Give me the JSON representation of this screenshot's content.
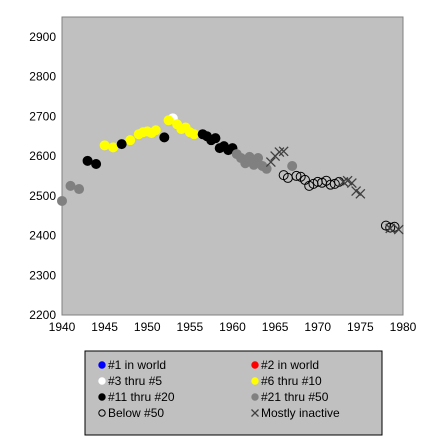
{
  "chart_data": {
    "type": "scatter",
    "title": "",
    "xlabel": "",
    "ylabel": "",
    "xlim": [
      1940,
      1980
    ],
    "ylim": [
      2200,
      2950
    ],
    "x_ticks": [
      1940,
      1945,
      1950,
      1955,
      1960,
      1965,
      1970,
      1975,
      1980
    ],
    "y_ticks": [
      2200,
      2300,
      2400,
      2500,
      2600,
      2700,
      2800,
      2900
    ],
    "grid": false,
    "plot_background": "#c0c0c0",
    "legend_position": "bottom",
    "legend": [
      {
        "label": "#1 in world",
        "color": "#0000ff",
        "marker": "filled-circle"
      },
      {
        "label": "#2 in world",
        "color": "#ff0000",
        "marker": "filled-circle"
      },
      {
        "label": "#3 thru #5",
        "color": "#ffffff",
        "marker": "filled-circle"
      },
      {
        "label": "#6 thru #10",
        "color": "#ffff00",
        "marker": "filled-circle"
      },
      {
        "label": "#11 thru #20",
        "color": "#000000",
        "marker": "filled-circle"
      },
      {
        "label": "#21 thru #50",
        "color": "#808080",
        "marker": "filled-circle"
      },
      {
        "label": "Below #50",
        "color": "#000000",
        "marker": "open-circle"
      },
      {
        "label": "Mostly inactive",
        "color": "#404040",
        "marker": "x"
      }
    ],
    "series": [
      {
        "name": "#1 in world",
        "color": "#0000ff",
        "marker": "filled-circle",
        "points": []
      },
      {
        "name": "#2 in world",
        "color": "#ff0000",
        "marker": "filled-circle",
        "points": []
      },
      {
        "name": "#3 thru #5",
        "color": "#ffffff",
        "marker": "filled-circle",
        "points": [
          [
            1953.0,
            2695
          ]
        ]
      },
      {
        "name": "#6 thru #10",
        "color": "#ffff00",
        "marker": "filled-circle",
        "points": [
          [
            1945.0,
            2627
          ],
          [
            1946.0,
            2622
          ],
          [
            1948.0,
            2640
          ],
          [
            1949.0,
            2655
          ],
          [
            1949.5,
            2660
          ],
          [
            1950.0,
            2662
          ],
          [
            1950.5,
            2658
          ],
          [
            1951.0,
            2665
          ],
          [
            1952.5,
            2690
          ],
          [
            1953.5,
            2680
          ],
          [
            1954.0,
            2668
          ],
          [
            1954.5,
            2672
          ],
          [
            1955.0,
            2660
          ],
          [
            1955.5,
            2655
          ]
        ]
      },
      {
        "name": "#11 thru #20",
        "color": "#000000",
        "marker": "filled-circle",
        "points": [
          [
            1943.0,
            2588
          ],
          [
            1944.0,
            2580
          ],
          [
            1947.0,
            2630
          ],
          [
            1952.0,
            2647
          ],
          [
            1956.5,
            2655
          ],
          [
            1957.0,
            2650
          ],
          [
            1957.5,
            2640
          ],
          [
            1958.0,
            2645
          ],
          [
            1958.5,
            2620
          ],
          [
            1959.0,
            2625
          ],
          [
            1959.5,
            2615
          ],
          [
            1960.0,
            2620
          ]
        ]
      },
      {
        "name": "#21 thru #50",
        "color": "#808080",
        "marker": "filled-circle",
        "points": [
          [
            1940.0,
            2487
          ],
          [
            1941.0,
            2525
          ],
          [
            1942.0,
            2517
          ],
          [
            1960.5,
            2605
          ],
          [
            1961.0,
            2595
          ],
          [
            1961.5,
            2582
          ],
          [
            1962.0,
            2598
          ],
          [
            1962.5,
            2578
          ],
          [
            1963.0,
            2595
          ],
          [
            1963.5,
            2575
          ],
          [
            1964.0,
            2568
          ],
          [
            1967.0,
            2575
          ]
        ]
      },
      {
        "name": "Below #50",
        "color": "#000000",
        "marker": "open-circle",
        "points": [
          [
            1966.0,
            2552
          ],
          [
            1966.5,
            2545
          ],
          [
            1967.5,
            2550
          ],
          [
            1968.0,
            2548
          ],
          [
            1968.5,
            2540
          ],
          [
            1969.0,
            2525
          ],
          [
            1969.5,
            2530
          ],
          [
            1970.0,
            2535
          ],
          [
            1970.5,
            2533
          ],
          [
            1971.0,
            2538
          ],
          [
            1971.5,
            2528
          ],
          [
            1972.0,
            2530
          ],
          [
            1972.5,
            2535
          ],
          [
            1978.0,
            2425
          ],
          [
            1978.5,
            2420
          ],
          [
            1979.0,
            2422
          ]
        ]
      },
      {
        "name": "Mostly inactive",
        "color": "#404040",
        "marker": "x",
        "points": [
          [
            1964.5,
            2585
          ],
          [
            1965.0,
            2600
          ],
          [
            1965.5,
            2610
          ],
          [
            1966.0,
            2612
          ],
          [
            1973.0,
            2535
          ],
          [
            1973.5,
            2538
          ],
          [
            1974.0,
            2532
          ],
          [
            1974.5,
            2512
          ],
          [
            1975.0,
            2505
          ],
          [
            1978.5,
            2418
          ],
          [
            1979.5,
            2415
          ]
        ]
      }
    ]
  }
}
